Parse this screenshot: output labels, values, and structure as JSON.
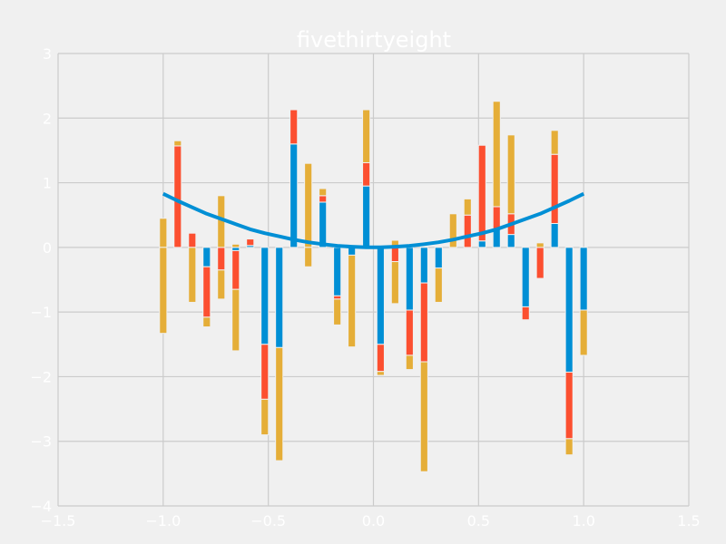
{
  "chart_data": {
    "type": "bar",
    "title": "fivethirtyeight",
    "xlabel": "",
    "ylabel": "",
    "xlim": [
      -1.5,
      1.5
    ],
    "ylim": [
      -4,
      3
    ],
    "xticks": [
      "−1.5",
      "−1.0",
      "−0.5",
      "0.0",
      "0.5",
      "1.0",
      "1.5"
    ],
    "xtick_values": [
      -1.5,
      -1.0,
      -0.5,
      0.0,
      0.5,
      1.0,
      1.5
    ],
    "yticks": [
      "−4",
      "−3",
      "−2",
      "−1",
      "0",
      "1",
      "2",
      "3"
    ],
    "ytick_values": [
      -4,
      -3,
      -2,
      -1,
      0,
      1,
      2,
      3
    ],
    "grid": true,
    "stacked": true,
    "bar_width": 0.035,
    "colors": [
      "#008fd5",
      "#fc4f30",
      "#e5ae38"
    ],
    "x": [
      -1.0,
      -0.931,
      -0.862,
      -0.793,
      -0.724,
      -0.655,
      -0.586,
      -0.517,
      -0.448,
      -0.379,
      -0.31,
      -0.241,
      -0.172,
      -0.103,
      -0.034,
      0.034,
      0.103,
      0.172,
      0.241,
      0.31,
      0.379,
      0.448,
      0.517,
      0.586,
      0.655,
      0.724,
      0.793,
      0.862,
      0.931,
      1.0
    ],
    "series": [
      {
        "values": [
          0.0,
          0.0,
          0.0,
          -0.3,
          0.0,
          -0.05,
          0.03,
          -1.5,
          -1.55,
          1.6,
          0.0,
          0.7,
          -0.75,
          -0.12,
          0.95,
          -1.5,
          0.0,
          -0.97,
          -0.55,
          -0.32,
          0.0,
          0.0,
          0.1,
          0.28,
          0.2,
          -0.92,
          0.0,
          0.37,
          -1.93,
          -0.97
        ]
      },
      {
        "values": [
          0.0,
          1.57,
          0.22,
          -0.78,
          -0.35,
          -0.6,
          0.1,
          -0.85,
          0.0,
          0.53,
          0.0,
          0.1,
          -0.05,
          0.0,
          0.36,
          -0.42,
          -0.22,
          -0.7,
          -1.22,
          0.0,
          0.0,
          0.5,
          1.48,
          0.35,
          0.32,
          -0.2,
          -0.48,
          1.07,
          -1.03,
          0.0
        ]
      },
      {
        "values": [
          0.45,
          0.08,
          0.0,
          -0.15,
          -0.45,
          0.05,
          0.0,
          -0.55,
          -1.75,
          0.0,
          1.3,
          0.11,
          -0.4,
          0.0,
          0.82,
          -0.06,
          0.11,
          -0.22,
          0.0,
          0.0,
          0.0,
          0.25,
          0.0,
          0.0,
          0.0,
          0.0,
          0.07,
          0.37,
          -0.25,
          0.0
        ]
      },
      {
        "values": [
          -1.33,
          0.0,
          -0.85,
          0.0,
          0.8,
          -0.95,
          0.0,
          0.0,
          0.0,
          0.0,
          -0.3,
          0.0,
          0.0,
          -1.42,
          0.0,
          0.0,
          -0.65,
          0.0,
          -1.7,
          -0.53,
          0.52,
          0.0,
          0.0,
          1.63,
          1.22,
          0.0,
          0.0,
          0.0,
          0.0,
          -0.7
        ]
      }
    ],
    "line": {
      "type": "line",
      "color": "#008fd5",
      "x": [
        -1.0,
        -0.931,
        -0.862,
        -0.793,
        -0.724,
        -0.655,
        -0.586,
        -0.517,
        -0.448,
        -0.379,
        -0.31,
        -0.241,
        -0.172,
        -0.103,
        -0.034,
        0.034,
        0.103,
        0.172,
        0.241,
        0.31,
        0.379,
        0.448,
        0.517,
        0.586,
        0.655,
        0.724,
        0.793,
        0.862,
        0.931,
        1.0
      ],
      "y": [
        0.83,
        0.72,
        0.62,
        0.52,
        0.44,
        0.36,
        0.28,
        0.22,
        0.17,
        0.12,
        0.08,
        0.05,
        0.025,
        0.01,
        0.001,
        0.001,
        0.01,
        0.025,
        0.05,
        0.08,
        0.12,
        0.17,
        0.22,
        0.28,
        0.36,
        0.44,
        0.52,
        0.62,
        0.72,
        0.83
      ]
    }
  }
}
